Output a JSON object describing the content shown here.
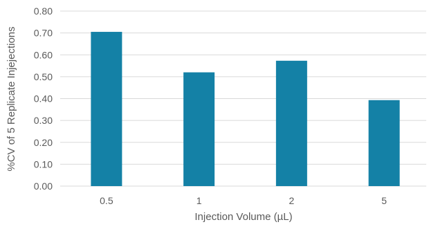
{
  "chart_data": {
    "type": "bar",
    "title": "",
    "xlabel": "Injection Volume (µL)",
    "ylabel": "%CV of 5 Replicate Injejections",
    "categories": [
      "0.5",
      "1",
      "2",
      "5"
    ],
    "values": [
      0.705,
      0.52,
      0.573,
      0.393
    ],
    "ylim": [
      0,
      0.8
    ],
    "y_ticks": [
      "0.00",
      "0.10",
      "0.20",
      "0.30",
      "0.40",
      "0.50",
      "0.60",
      "0.70",
      "0.80"
    ],
    "grid": true,
    "legend": "none",
    "colors": {
      "bar": "#1481a6",
      "grid": "#d9d9d9",
      "text": "#595959"
    }
  }
}
